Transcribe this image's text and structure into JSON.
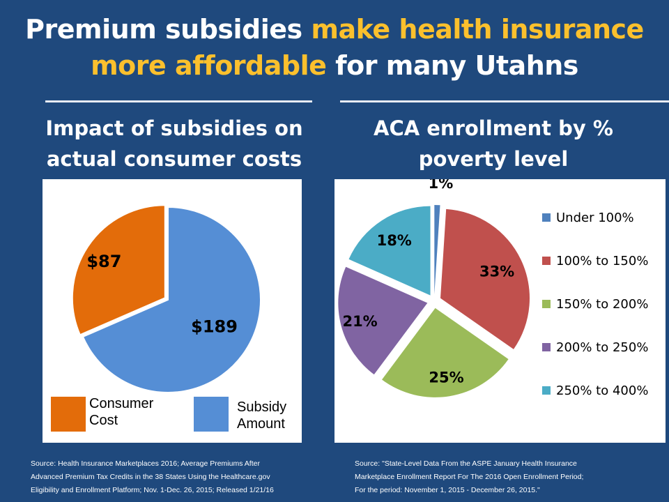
{
  "title": {
    "part1": "Premium subsidies ",
    "part2": "make health insurance",
    "part3": "more affordable",
    "part4": " for many Utahns"
  },
  "colors": {
    "background": "#1f497d",
    "highlight": "#fbc02d"
  },
  "left": {
    "subtitle_line1": "Impact of subsidies on",
    "subtitle_line2": "actual consumer costs",
    "source": [
      "Source: Health Insurance Marketplaces 2016; Average Premiums After",
      "Advanced Premium Tax Credits in the 38 States Using the Healthcare.gov",
      "Eligibility and Enrollment Platform; Nov. 1-Dec. 26, 2015; Released 1/21/16"
    ]
  },
  "right": {
    "subtitle_line1": "ACA enrollment by %",
    "subtitle_line2": "poverty level",
    "source": [
      "Source: \"State-Level Data From the ASPE January Health Insurance",
      "Marketplace Enrollment Report For The 2016 Open Enrollment Period;",
      "For the period: November 1, 2015 - December 26, 2015.\""
    ]
  },
  "chart_data": [
    {
      "type": "pie",
      "categories": [
        "Consumer Cost",
        "Subsidy Amount"
      ],
      "values": [
        87,
        189
      ],
      "labels": [
        "$87",
        "$189"
      ],
      "legend_lines": [
        [
          "Consumer",
          "Cost"
        ],
        [
          "Subsidy",
          "Amount"
        ]
      ],
      "colors": [
        "#e36c0a",
        "#558ed5"
      ],
      "legend": "bottom"
    },
    {
      "type": "pie",
      "categories": [
        "Under 100%",
        "100% to 150%",
        "150% to 200%",
        "200% to 250%",
        "250% to 400%"
      ],
      "values": [
        1,
        33,
        25,
        21,
        18
      ],
      "labels": [
        "1%",
        "33%",
        "25%",
        "21%",
        "18%"
      ],
      "colors": [
        "#4f81bd",
        "#c0504d",
        "#9bbb59",
        "#8064a2",
        "#4bacc6"
      ],
      "legend": "right",
      "exploded": true
    }
  ]
}
